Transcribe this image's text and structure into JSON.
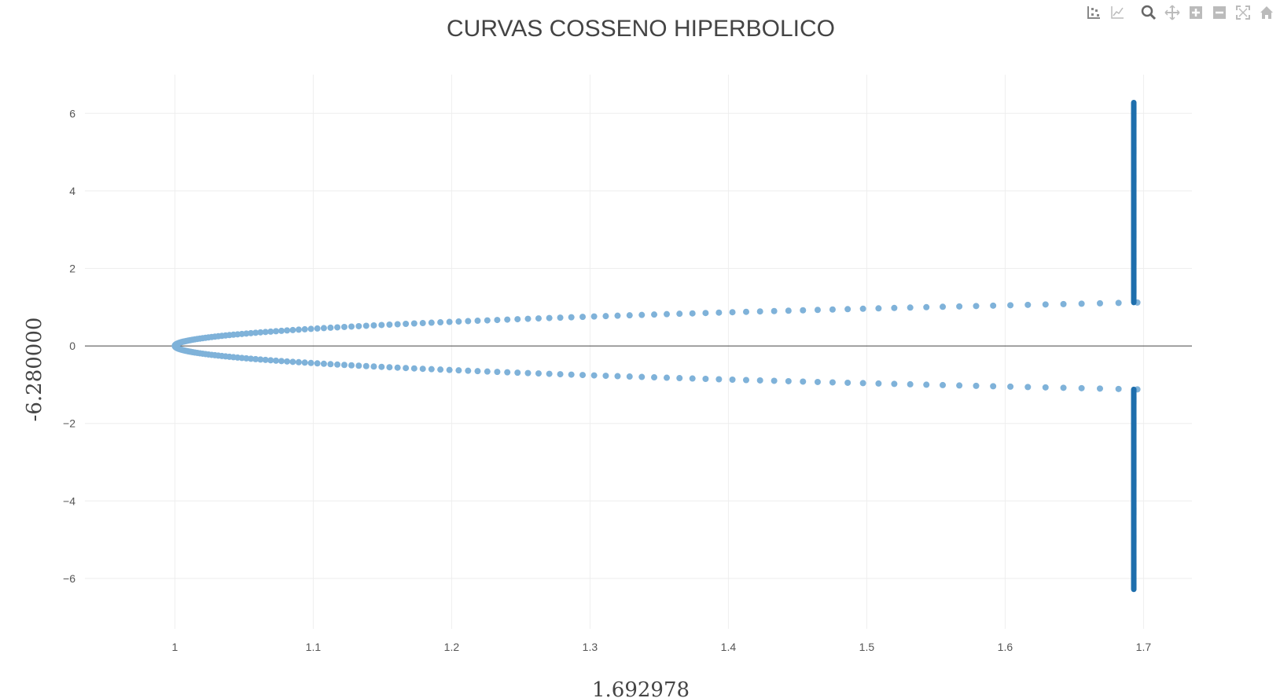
{
  "chart_data": {
    "type": "scatter",
    "title": "CURVAS COSSENO HIPERBOLICO",
    "xlabel": "1.692978",
    "ylabel": "-6.280000",
    "xlim": [
      0.935,
      1.735
    ],
    "ylim": [
      -7.3,
      7.0
    ],
    "x_ticks": [
      1,
      1.1,
      1.2,
      1.3,
      1.4,
      1.5,
      1.6,
      1.7
    ],
    "x_tick_labels": [
      "1",
      "1.1",
      "1.2",
      "1.3",
      "1.4",
      "1.5",
      "1.6",
      "1.7"
    ],
    "y_ticks": [
      -6,
      -4,
      -2,
      0,
      2,
      4,
      6
    ],
    "y_tick_labels": [
      "−6",
      "−4",
      "−2",
      "0",
      "2",
      "4",
      "6"
    ],
    "grid": true,
    "zero_line": true,
    "series": [
      {
        "color": "#7fb2d9",
        "marker": "circle",
        "description": "upper branch: x = cosh(t), y = t, t from 0 to 1.12",
        "t_start": 0.0,
        "t_end": 1.12,
        "t_step": 0.01,
        "x_expr": "cosh",
        "y_sign": 1
      },
      {
        "color": "#7fb2d9",
        "marker": "circle",
        "description": "lower branch: x = cosh(t), y = -t, t from 0 to 1.12",
        "t_start": 0.0,
        "t_end": 1.12,
        "t_step": 0.01,
        "x_expr": "cosh",
        "y_sign": -1
      },
      {
        "color": "#1f6fad",
        "marker": "circle",
        "description": "vertical segment at x = 1.692978, y from 1.12 to 6.28",
        "x_const": 1.692978,
        "y_start": 1.12,
        "y_end": 6.28,
        "y_step": 0.02
      },
      {
        "color": "#1f6fad",
        "marker": "circle",
        "description": "vertical segment at x = 1.692978, y from -1.12 to -6.28",
        "x_const": 1.692978,
        "y_start": -1.12,
        "y_end": -6.28,
        "y_step": -0.02
      }
    ]
  },
  "modebar": {
    "icons": [
      "scatter-icon",
      "line-icon",
      "zoom-icon",
      "pan-icon",
      "zoom-in-icon",
      "zoom-out-icon",
      "autoscale-icon",
      "home-icon"
    ]
  }
}
